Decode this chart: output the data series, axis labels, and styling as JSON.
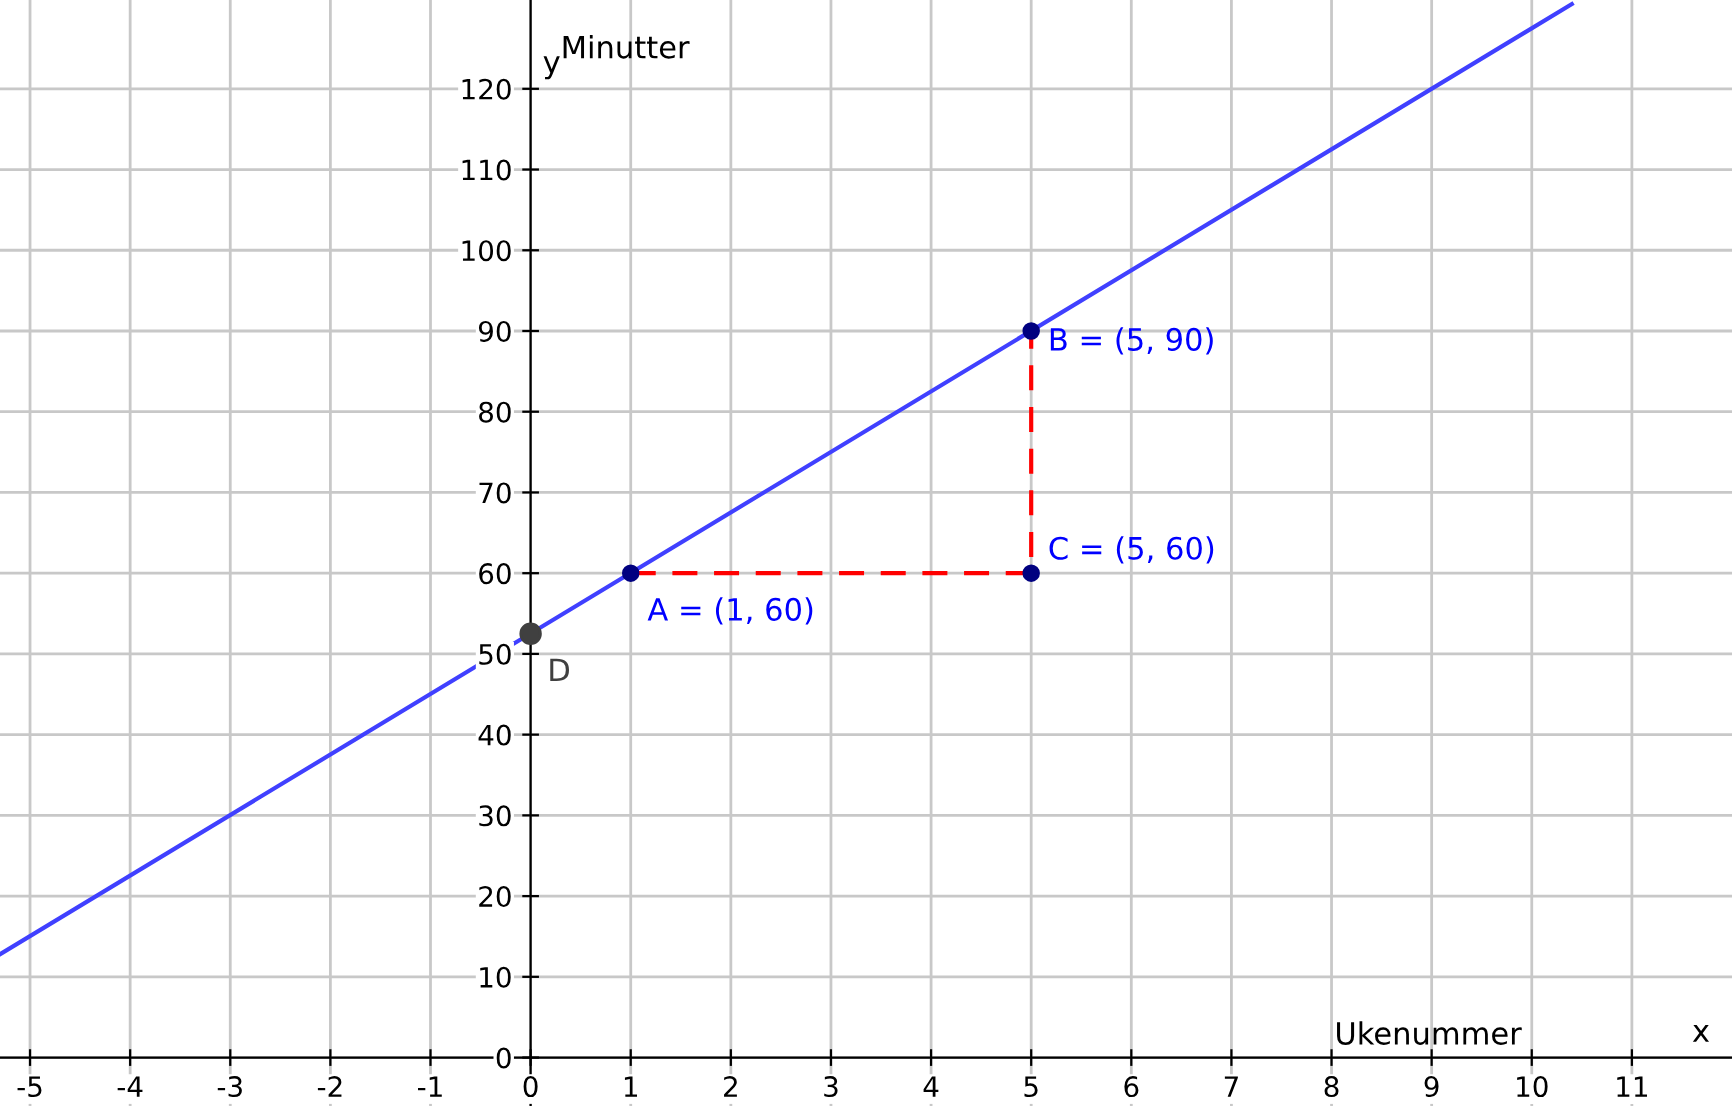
{
  "chart_data": {
    "type": "line",
    "xlabel": "Ukenummer",
    "ylabel": "Minutter",
    "xlim": [
      -5.3,
      12
    ],
    "ylim": [
      -6,
      131
    ],
    "xticks": [
      -5,
      -4,
      -3,
      -2,
      -1,
      0,
      1,
      2,
      3,
      4,
      5,
      6,
      7,
      8,
      9,
      10,
      11
    ],
    "yticks": [
      0,
      10,
      20,
      30,
      40,
      50,
      60,
      70,
      80,
      90,
      100,
      110,
      120
    ],
    "grid": true,
    "series": [
      {
        "color": "#4040ff",
        "x": [
          -5.3,
          10.4
        ],
        "values": [
          12.8,
          130.5
        ],
        "line_style": "solid"
      },
      {
        "color": "#ff0000",
        "x": [
          1,
          5,
          5
        ],
        "values": [
          60,
          60,
          90
        ],
        "line_style": "dashed"
      },
      {
        "type": "scatter",
        "color": "#000080",
        "x": [
          1,
          5,
          5
        ],
        "values": [
          60,
          90,
          60
        ],
        "marker": "circle"
      },
      {
        "type": "scatter",
        "color": "#404040",
        "x": [
          0
        ],
        "values": [
          52.5
        ],
        "marker": "circle"
      }
    ],
    "annotations": [
      "y",
      "x",
      {
        "text": "A = (1, 60)",
        "x": 1,
        "y": 60
      },
      {
        "text": "B = (5, 90)",
        "x": 5,
        "y": 90
      },
      {
        "text": "C = (5, 60)",
        "x": 5,
        "y": 60
      },
      {
        "text": "D",
        "x": 0,
        "y": 52.5
      }
    ]
  }
}
